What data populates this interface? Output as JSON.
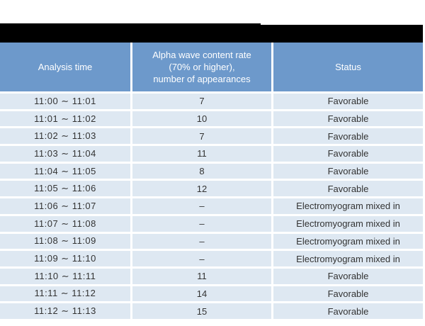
{
  "colors": {
    "header_bg": "#6d99cb",
    "row_bg": "#dee8f2",
    "redaction_bar": "#000000",
    "header_text": "#ffffff",
    "body_text": "#333333",
    "page_bg": "#ffffff"
  },
  "table": {
    "columns": [
      {
        "label": "Analysis time"
      },
      {
        "label": "Alpha wave content rate\n(70% or higher),\nnumber of appearances"
      },
      {
        "label": "Status"
      }
    ],
    "rows": [
      {
        "time": "11:00 ∼ 11:01",
        "count": "7",
        "status": "Favorable"
      },
      {
        "time": "11:01 ∼ 11:02",
        "count": "10",
        "status": "Favorable"
      },
      {
        "time": "11:02 ∼ 11:03",
        "count": "7",
        "status": "Favorable"
      },
      {
        "time": "11:03 ∼ 11:04",
        "count": "11",
        "status": "Favorable"
      },
      {
        "time": "11:04 ∼ 11:05",
        "count": "8",
        "status": "Favorable"
      },
      {
        "time": "11:05 ∼ 11:06",
        "count": "12",
        "status": "Favorable"
      },
      {
        "time": "11:06 ∼ 11:07",
        "count": "–",
        "status": "Electromyogram mixed in"
      },
      {
        "time": "11:07 ∼ 11:08",
        "count": "–",
        "status": "Electromyogram mixed in"
      },
      {
        "time": "11:08 ∼ 11:09",
        "count": "–",
        "status": "Electromyogram mixed in"
      },
      {
        "time": "11:09 ∼ 11:10",
        "count": "–",
        "status": "Electromyogram mixed in"
      },
      {
        "time": "11:10 ∼ 11:11",
        "count": "11",
        "status": "Favorable"
      },
      {
        "time": "11:11 ∼ 11:12",
        "count": "14",
        "status": "Favorable"
      },
      {
        "time": "11:12 ∼ 11:13",
        "count": "15",
        "status": "Favorable"
      }
    ]
  }
}
